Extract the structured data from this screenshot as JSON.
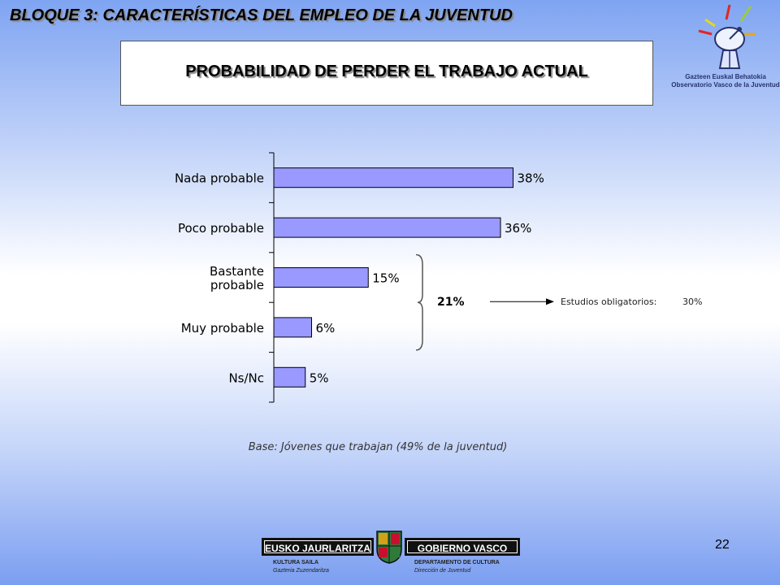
{
  "header": {
    "section_title": "BLOQUE 3: CARACTERÍSTICAS DEL EMPLEO DE LA JUVENTUD",
    "chart_title": "PROBABILIDAD DE PERDER EL TRABAJO ACTUAL"
  },
  "logo_top": {
    "line1": "Gazteen Euskal Behatokia",
    "line2": "Observatorio Vasco de la Juventud"
  },
  "chart_data": {
    "type": "bar",
    "orientation": "horizontal",
    "title": "PROBABILIDAD DE PERDER EL TRABAJO ACTUAL",
    "categories": [
      [
        "Nada probable"
      ],
      [
        "Poco probable"
      ],
      [
        "Bastante",
        "probable"
      ],
      [
        "Muy probable"
      ],
      [
        "Ns/Nc"
      ]
    ],
    "values": [
      38,
      36,
      15,
      6,
      5
    ],
    "value_labels": [
      "38%",
      "36%",
      "15%",
      "6%",
      "5%"
    ],
    "xlim": [
      0,
      40
    ],
    "bar_color": "#9999ff",
    "grid": false,
    "annotation": {
      "bracket_covers": [
        "Bastante probable",
        "Muy probable"
      ],
      "sum_label": "21%",
      "note_label": "Estudios obligatorios:",
      "note_value": "30%"
    }
  },
  "footer": {
    "base_note": "Base: Jóvenes que trabajan (49% de la juventud)",
    "page_number": "22",
    "gov_left": "EUSKO JAURLARITZA",
    "gov_right": "GOBIERNO VASCO",
    "dept_left_1": "KULTURA SAILA",
    "dept_left_2": "Gazteria Zuzendaritza",
    "dept_right_1": "DEPARTAMENTO DE CULTURA",
    "dept_right_2": "Dirección de Juventud"
  },
  "colors": {
    "bar": "#9999ff",
    "bar_stroke": "#000000",
    "background_blue": "#7fa4f2"
  }
}
